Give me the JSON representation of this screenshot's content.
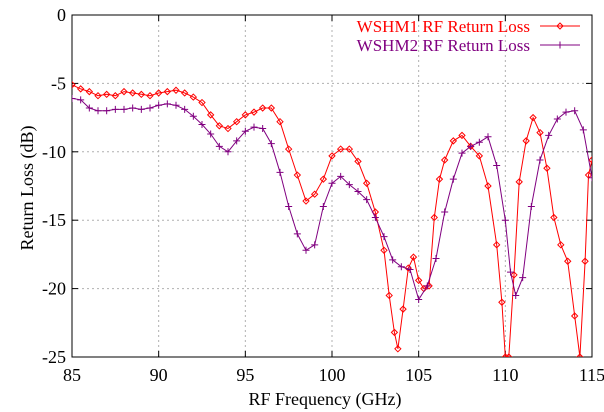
{
  "chart_data": {
    "type": "line",
    "title": "",
    "xlabel": "RF Frequency (GHz)",
    "ylabel": "Return Loss (dB)",
    "xlim": [
      85,
      115
    ],
    "ylim": [
      -25,
      0
    ],
    "xticks": [
      85,
      90,
      95,
      100,
      105,
      110,
      115
    ],
    "yticks": [
      0,
      -5,
      -10,
      -15,
      -20,
      -25
    ],
    "xtick_labels": [
      "85",
      "90",
      "95",
      "100",
      "105",
      "110",
      "115"
    ],
    "ytick_labels": [
      "0",
      "-5",
      "-10",
      "-15",
      "-20",
      "-25"
    ],
    "grid": true,
    "legend_position": "top-right",
    "series": [
      {
        "name": "WSHM1 RF Return Loss",
        "color": "#ff0000",
        "marker": "diamond",
        "x": [
          85.0,
          85.5,
          86.0,
          86.5,
          87.0,
          87.5,
          88.0,
          88.5,
          89.0,
          89.5,
          90.0,
          90.5,
          91.0,
          91.5,
          92.0,
          92.5,
          93.0,
          93.5,
          94.0,
          94.5,
          95.0,
          95.5,
          96.0,
          96.5,
          97.0,
          97.5,
          98.0,
          98.5,
          99.0,
          99.5,
          100.0,
          100.5,
          101.0,
          101.5,
          102.0,
          102.5,
          103.0,
          103.3,
          103.6,
          103.8,
          104.1,
          104.4,
          104.7,
          105.0,
          105.3,
          105.6,
          105.9,
          106.2,
          106.5,
          107.0,
          107.5,
          108.0,
          108.5,
          109.0,
          109.5,
          109.8,
          110.0,
          110.2,
          110.5,
          110.8,
          111.2,
          111.6,
          112.0,
          112.4,
          112.8,
          113.2,
          113.6,
          114.0,
          114.3,
          114.6,
          114.8,
          115.0
        ],
        "y": [
          -5.1,
          -5.4,
          -5.6,
          -5.9,
          -5.8,
          -5.9,
          -5.6,
          -5.7,
          -5.8,
          -5.9,
          -5.7,
          -5.6,
          -5.5,
          -5.7,
          -6.0,
          -6.4,
          -7.3,
          -8.1,
          -8.3,
          -7.8,
          -7.3,
          -7.1,
          -6.8,
          -6.8,
          -7.8,
          -9.8,
          -11.7,
          -13.6,
          -13.1,
          -12.0,
          -10.3,
          -9.8,
          -9.8,
          -10.7,
          -12.3,
          -14.4,
          -17.2,
          -20.5,
          -23.2,
          -24.4,
          -21.5,
          -18.5,
          -17.7,
          -19.4,
          -20.0,
          -19.8,
          -14.8,
          -12.0,
          -10.6,
          -9.2,
          -8.8,
          -9.6,
          -10.3,
          -12.5,
          -16.8,
          -21.0,
          -25.0,
          -25.0,
          -19.0,
          -12.2,
          -9.2,
          -7.5,
          -8.6,
          -11.2,
          -14.8,
          -16.8,
          -18.0,
          -22.0,
          -25.0,
          -18.0,
          -11.7,
          -10.6
        ]
      },
      {
        "name": "WSHM2 RF Return Loss",
        "color": "#800080",
        "marker": "plus",
        "x": [
          85.0,
          85.5,
          86.0,
          86.5,
          87.0,
          87.5,
          88.0,
          88.5,
          89.0,
          89.5,
          90.0,
          90.5,
          91.0,
          91.5,
          92.0,
          92.5,
          93.0,
          93.5,
          94.0,
          94.5,
          95.0,
          95.5,
          96.0,
          96.5,
          97.0,
          97.5,
          98.0,
          98.5,
          99.0,
          99.5,
          100.0,
          100.5,
          101.0,
          101.5,
          102.0,
          102.5,
          103.0,
          103.5,
          104.0,
          104.5,
          105.0,
          105.5,
          106.0,
          106.5,
          107.0,
          107.5,
          108.0,
          108.5,
          109.0,
          109.5,
          110.0,
          110.3,
          110.6,
          111.0,
          111.5,
          112.0,
          112.5,
          113.0,
          113.5,
          114.0,
          114.5,
          115.0
        ],
        "y": [
          -6.1,
          -6.2,
          -6.8,
          -7.0,
          -7.0,
          -6.9,
          -6.9,
          -6.8,
          -6.9,
          -6.8,
          -6.6,
          -6.5,
          -6.6,
          -6.9,
          -7.4,
          -8.0,
          -8.7,
          -9.6,
          -10.0,
          -9.2,
          -8.5,
          -8.2,
          -8.3,
          -9.4,
          -11.5,
          -14.0,
          -16.0,
          -17.2,
          -16.8,
          -14.0,
          -12.3,
          -11.8,
          -12.4,
          -12.9,
          -13.5,
          -14.8,
          -16.2,
          -17.9,
          -18.4,
          -18.6,
          -20.8,
          -19.8,
          -17.8,
          -14.4,
          -12.0,
          -10.1,
          -9.6,
          -9.3,
          -8.9,
          -11.0,
          -15.0,
          -18.8,
          -20.5,
          -19.2,
          -14.0,
          -10.6,
          -8.8,
          -7.6,
          -7.1,
          -7.0,
          -8.4,
          -11.9
        ]
      }
    ]
  }
}
